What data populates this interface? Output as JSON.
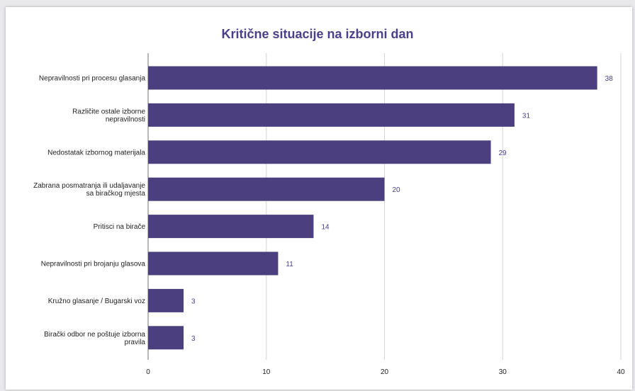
{
  "chart_data": {
    "type": "bar",
    "orientation": "horizontal",
    "title": "Kritične situacije na izborni dan",
    "categories": [
      [
        "Nepravilnosti pri procesu glasanja"
      ],
      [
        "Različite ostale izborne",
        "nepravilnosti"
      ],
      [
        "Nedostatak izbornog materijala"
      ],
      [
        "Zabrana posmatranja ili udaljavanje",
        "sa biračkog mjesta"
      ],
      [
        "Pritisci na birače"
      ],
      [
        "Nepravilnosti pri brojanju glasova"
      ],
      [
        "Kružno glasanje / Bugarski voz"
      ],
      [
        "Birački odbor ne poštuje izborna",
        "pravila"
      ]
    ],
    "values": [
      38,
      31,
      29,
      20,
      14,
      11,
      3,
      3
    ],
    "xlim": [
      0,
      40
    ],
    "xticks": [
      0,
      10,
      20,
      30,
      40
    ],
    "grid": true,
    "bar_color": "#4b3f80",
    "value_label_color": "#4b3f8a",
    "title_color": "#4b3f8a"
  }
}
